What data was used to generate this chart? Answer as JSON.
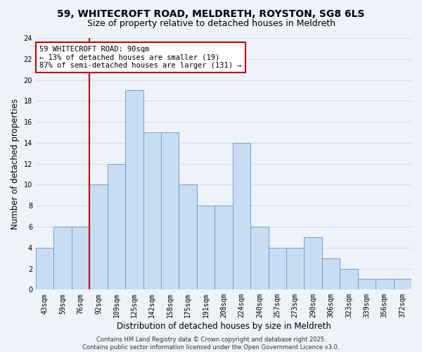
{
  "title1": "59, WHITECROFT ROAD, MELDRETH, ROYSTON, SG8 6LS",
  "title2": "Size of property relative to detached houses in Meldreth",
  "xlabel": "Distribution of detached houses by size in Meldreth",
  "ylabel": "Number of detached properties",
  "categories": [
    "43sqm",
    "59sqm",
    "76sqm",
    "92sqm",
    "109sqm",
    "125sqm",
    "142sqm",
    "158sqm",
    "175sqm",
    "191sqm",
    "208sqm",
    "224sqm",
    "240sqm",
    "257sqm",
    "273sqm",
    "290sqm",
    "306sqm",
    "323sqm",
    "339sqm",
    "356sqm",
    "372sqm"
  ],
  "values": [
    4,
    6,
    6,
    10,
    12,
    19,
    15,
    15,
    10,
    8,
    8,
    14,
    6,
    4,
    4,
    5,
    3,
    2,
    1,
    1,
    1
  ],
  "bar_color": "#c9ddf2",
  "bar_edge_color": "#6b9fd4",
  "red_line_index": 3,
  "annotation_text": "59 WHITECROFT ROAD: 90sqm\n← 13% of detached houses are smaller (19)\n87% of semi-detached houses are larger (131) →",
  "annotation_box_color": "#ffffff",
  "annotation_border_color": "#cc0000",
  "ylim": [
    0,
    24
  ],
  "yticks": [
    0,
    2,
    4,
    6,
    8,
    10,
    12,
    14,
    16,
    18,
    20,
    22,
    24
  ],
  "bg_color": "#eef2f9",
  "grid_color": "#d8dfe8",
  "footer": "Contains HM Land Registry data © Crown copyright and database right 2025.\nContains public sector information licensed under the Open Government Licence v3.0.",
  "title_fontsize": 10,
  "subtitle_fontsize": 9,
  "axis_fontsize": 8.5,
  "tick_fontsize": 7,
  "annotation_fontsize": 7.5
}
